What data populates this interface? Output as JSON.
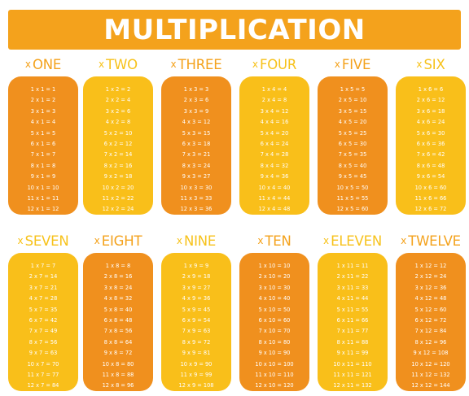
{
  "title": "MULTIPLICATION",
  "colors": {
    "banner": "#f4a21c",
    "orange": "#f0901e",
    "yellow": "#f9bf1a",
    "heading_orange": "#f4a21c",
    "heading_yellow": "#f7c21b"
  },
  "times_symbol": "x",
  "tables": [
    {
      "name": "ONE",
      "n": 1,
      "color": "orange",
      "facts": [
        "1 x 1 = 1",
        "2 x 1 = 2",
        "3 x 1 = 3",
        "4 x 1 = 4",
        "5 x 1 = 5",
        "6 x 1 = 6",
        "7 x 1 = 7",
        "8 x 1 = 8",
        "9 x 1 = 9",
        "10 x 1 = 10",
        "11 x 1 = 11",
        "12 x 1 = 12"
      ]
    },
    {
      "name": "TWO",
      "n": 2,
      "color": "yellow",
      "facts": [
        "1 x 2 = 2",
        "2 x 2 = 4",
        "3 x 2 = 6",
        "4 x 2 = 8",
        "5 x 2 = 10",
        "6 x 2 = 12",
        "7 x 2 = 14",
        "8 x 2 = 16",
        "9 x 2 = 18",
        "10 x 2 = 20",
        "11 x 2 = 22",
        "12 x 2 = 24"
      ]
    },
    {
      "name": "THREE",
      "n": 3,
      "color": "orange",
      "facts": [
        "1 x 3 = 3",
        "2 x 3 = 6",
        "3 x 3 = 9",
        "4 x 3 = 12",
        "5 x 3 = 15",
        "6 x 3 = 18",
        "7 x 3 = 21",
        "8 x 3 = 24",
        "9 x 3 = 27",
        "10 x 3 = 30",
        "11 x 3 = 33",
        "12 x 3 = 36"
      ]
    },
    {
      "name": "FOUR",
      "n": 4,
      "color": "yellow",
      "facts": [
        "1 x 4 = 4",
        "2 x 4 = 8",
        "3 x 4 = 12",
        "4 x 4 = 16",
        "5 x 4 = 20",
        "6 x 4 = 24",
        "7 x 4 = 28",
        "8 x 4 = 32",
        "9 x 4 = 36",
        "10 x 4 = 40",
        "11 x 4 = 44",
        "12 x 4 = 48"
      ]
    },
    {
      "name": "FIVE",
      "n": 5,
      "color": "orange",
      "facts": [
        "1 x 5 = 5",
        "2 x 5 = 10",
        "3 x 5 = 15",
        "4 x 5 = 20",
        "5 x 5 = 25",
        "6 x 5 = 30",
        "7 x 5 = 35",
        "8 x 5 = 40",
        "9 x 5 = 45",
        "10 x 5 = 50",
        "11 x 5 = 55",
        "12 x 5 = 60"
      ]
    },
    {
      "name": "SIX",
      "n": 6,
      "color": "yellow",
      "facts": [
        "1 x 6 = 6",
        "2 x 6 = 12",
        "3 x 6 = 18",
        "4 x 6 = 24",
        "5 x 6 = 30",
        "6 x 6 = 36",
        "7 x 6 = 42",
        "8 x 6 = 48",
        "9 x 6 = 54",
        "10 x 6 = 60",
        "11 x 6 = 66",
        "12 x 6 = 72"
      ]
    },
    {
      "name": "SEVEN",
      "n": 7,
      "color": "yellow",
      "facts": [
        "1 x 7 = 7",
        "2 x 7 = 14",
        "3 x 7 = 21",
        "4 x 7 = 28",
        "5 x 7 = 35",
        "6 x 7 = 42",
        "7 x 7 = 49",
        "8 x 7 = 56",
        "9 x 7 = 63",
        "10 x 7 = 70",
        "11 x 7 = 77",
        "12 x 7 = 84"
      ]
    },
    {
      "name": "EIGHT",
      "n": 8,
      "color": "orange",
      "facts": [
        "1 x 8 = 8",
        "2 x 8 = 16",
        "3 x 8 = 24",
        "4 x 8 = 32",
        "5 x 8 = 40",
        "6 x 8 = 48",
        "7 x 8 = 56",
        "8 x 8 = 64",
        "9 x 8 = 72",
        "10 x 8 = 80",
        "11 x 8 = 88",
        "12 x 8 = 96"
      ]
    },
    {
      "name": "NINE",
      "n": 9,
      "color": "yellow",
      "facts": [
        "1 x 9 = 9",
        "2 x 9 = 18",
        "3 x 9 = 27",
        "4 x 9 = 36",
        "5 x 9 = 45",
        "6 x 9 = 54",
        "7 x 9 = 63",
        "8 x 9 = 72",
        "9 x 9 = 81",
        "10 x 9 = 90",
        "11 x 9 = 99",
        "12 x 9 = 108"
      ]
    },
    {
      "name": "TEN",
      "n": 10,
      "color": "orange",
      "facts": [
        "1 x 10 = 10",
        "2 x 10 = 20",
        "3 x 10 = 30",
        "4 x 10 = 40",
        "5 x 10 = 50",
        "6 x 10 = 60",
        "7 x 10 = 70",
        "8 x 10 = 80",
        "9 x 10 = 90",
        "10 x 10 = 100",
        "11 x 10 = 110",
        "12 x 10 = 120"
      ]
    },
    {
      "name": "ELEVEN",
      "n": 11,
      "color": "yellow",
      "facts": [
        "1 x 11 = 11",
        "2 x 11 = 22",
        "3 x 11 = 33",
        "4 x 11 = 44",
        "5 x 11 = 55",
        "6 x 11 = 66",
        "7 x 11 = 77",
        "8 x 11 = 88",
        "9 x 11 = 99",
        "10 x 11 = 110",
        "11 x 11 = 121",
        "12 x 11 = 132"
      ]
    },
    {
      "name": "TWELVE",
      "n": 12,
      "color": "orange",
      "facts": [
        "1 x 12 = 12",
        "2 x 12 = 24",
        "3 x 12 = 36",
        "4 x 12 = 48",
        "5 x 12 = 60",
        "6 x 12 = 72",
        "7 x 12 = 84",
        "8 x 12 = 96",
        "9 x 12 = 108",
        "10 x 12 = 120",
        "11 x 12 = 132",
        "12 x 12 = 144"
      ]
    }
  ]
}
